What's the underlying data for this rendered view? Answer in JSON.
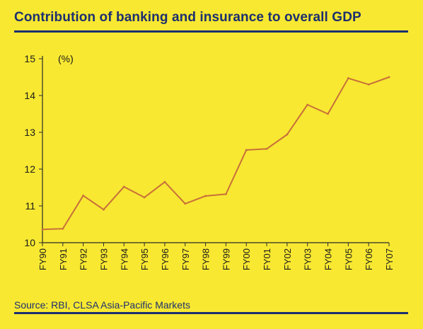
{
  "title": "Contribution of banking and insurance to overall GDP",
  "source": "Source: RBI, CLSA Asia-Pacific Markets",
  "colors": {
    "background": "#f8e831",
    "title": "#1d2f6e",
    "line": "#c8703a",
    "axis": "#2a2a2a"
  },
  "chart_data": {
    "type": "line",
    "title": "Contribution of banking and insurance to overall GDP",
    "xlabel": "",
    "ylabel": "(%)",
    "ylim": [
      10,
      15
    ],
    "yticks": [
      10,
      11,
      12,
      13,
      14,
      15
    ],
    "grid": false,
    "categories": [
      "FY90",
      "FY91",
      "FY92",
      "FY93",
      "FY94",
      "FY95",
      "FY96",
      "FY97",
      "FY98",
      "FY99",
      "FY00",
      "FY01",
      "FY02",
      "FY03",
      "FY04",
      "FY05",
      "FY06",
      "FY07"
    ],
    "series": [
      {
        "values": [
          10.36,
          10.38,
          11.28,
          10.9,
          11.52,
          11.23,
          11.65,
          11.06,
          11.27,
          11.32,
          12.52,
          12.55,
          12.94,
          13.75,
          13.5,
          14.47,
          14.3,
          14.5
        ]
      }
    ]
  }
}
